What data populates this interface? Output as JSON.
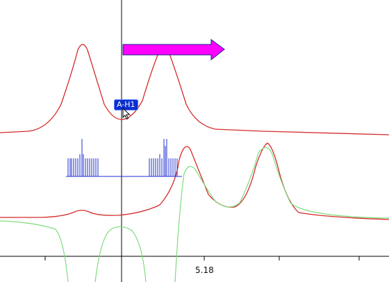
{
  "chart_data": {
    "type": "line",
    "x_tick_label": "5.18",
    "series": [
      {
        "color": "#d42a2a"
      },
      {
        "color": "#d42a2a"
      },
      {
        "color": "#7edb7e"
      },
      {
        "color": "#1f2fd0"
      }
    ]
  },
  "label_badge": {
    "text": "A-H1"
  },
  "arrow": {
    "color": "#ff00ff"
  },
  "cursor": {
    "icon": "arrow-cursor-icon"
  }
}
